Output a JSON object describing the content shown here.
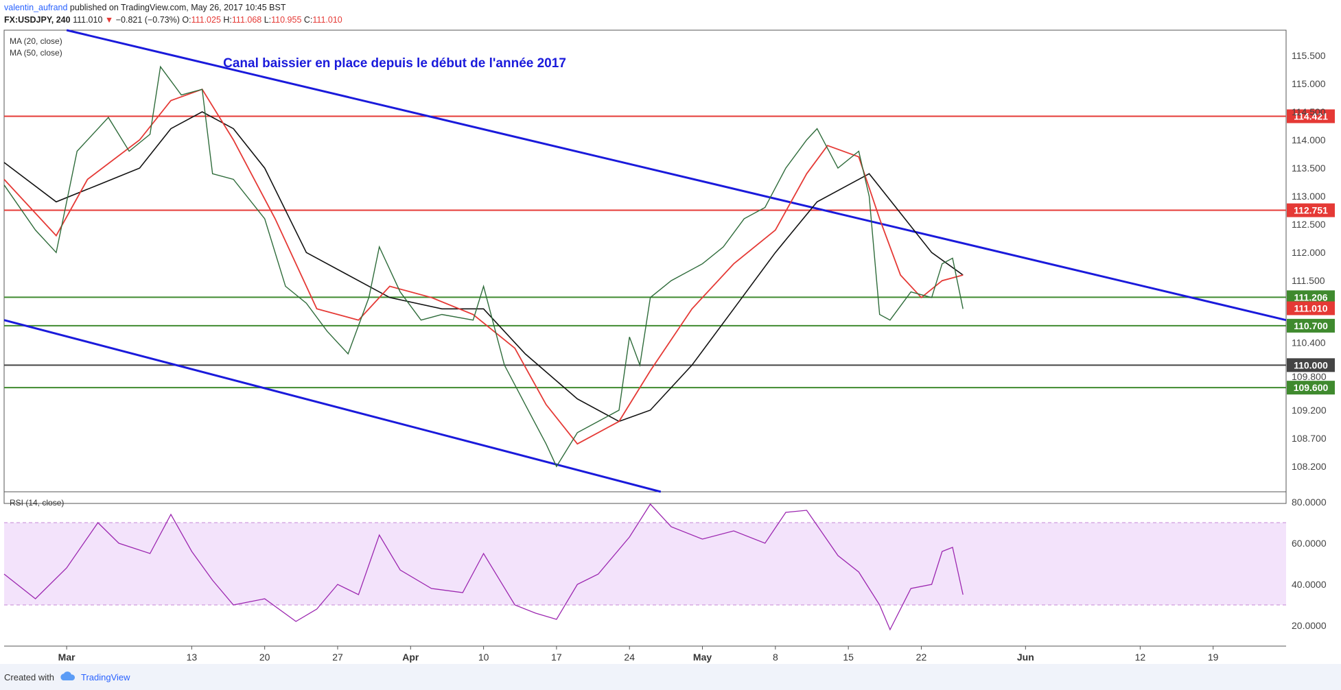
{
  "header": {
    "author": "valentin_aufrand",
    "published_text": "published on TradingView.com, May 26, 2017 10:45 BST",
    "symbol": "FX:USDJPY, 240",
    "last": "111.010",
    "change_arrow": "▼",
    "change": "−0.821 (−0.73%)",
    "o_label": "O:",
    "o": "111.025",
    "h_label": "H:",
    "h": "111.068",
    "l_label": "L:",
    "l": "110.955",
    "c_label": "C:",
    "c": "111.010"
  },
  "legend": {
    "ma20": "MA (20, close)",
    "ma50": "MA (50, close)",
    "rsi": "RSI (14, close)"
  },
  "chart_data": {
    "type": "candlestick",
    "title": "Canal baissier en place depuis le début de l'année 2017",
    "title_color": "#1a1adb",
    "ylim": [
      107.75,
      115.95
    ],
    "x_start": "2017-02-23",
    "x_end": "2017-06-26",
    "price_ticks": [
      "115.500",
      "115.000",
      "114.500",
      "114.000",
      "113.500",
      "113.000",
      "112.500",
      "112.000",
      "111.500",
      "110.400",
      "109.800",
      "109.200",
      "108.700",
      "108.200"
    ],
    "x_ticks": [
      {
        "label": "Mar",
        "date": "2017-03-01",
        "bold": true
      },
      {
        "label": "13",
        "date": "2017-03-13"
      },
      {
        "label": "20",
        "date": "2017-03-20"
      },
      {
        "label": "27",
        "date": "2017-03-27"
      },
      {
        "label": "Apr",
        "date": "2017-04-03",
        "bold": true
      },
      {
        "label": "10",
        "date": "2017-04-10"
      },
      {
        "label": "17",
        "date": "2017-04-17"
      },
      {
        "label": "24",
        "date": "2017-04-24"
      },
      {
        "label": "May",
        "date": "2017-05-01",
        "bold": true
      },
      {
        "label": "8",
        "date": "2017-05-08"
      },
      {
        "label": "15",
        "date": "2017-05-15"
      },
      {
        "label": "22",
        "date": "2017-05-22"
      },
      {
        "label": "Jun",
        "date": "2017-06-01",
        "bold": true
      },
      {
        "label": "12",
        "date": "2017-06-12"
      },
      {
        "label": "19",
        "date": "2017-06-19"
      }
    ],
    "horizontal_levels": [
      {
        "value": 114.421,
        "label": "114.421",
        "color": "#e53935"
      },
      {
        "value": 112.751,
        "label": "112.751",
        "color": "#e53935"
      },
      {
        "value": 111.206,
        "label": "111.206",
        "color": "#3f8a2e"
      },
      {
        "value": 110.7,
        "label": "110.700",
        "color": "#3f8a2e"
      },
      {
        "value": 110.0,
        "label": "110.000",
        "color": "#444444"
      },
      {
        "value": 109.6,
        "label": "109.600",
        "color": "#3f8a2e"
      }
    ],
    "last_price": {
      "value": 111.01,
      "label": "111.010",
      "color": "#e53935"
    },
    "trendlines": [
      {
        "name": "upper channel",
        "color": "#1a1adb",
        "points": [
          [
            "2017-03-01",
            115.95
          ],
          [
            "2017-06-26",
            110.8
          ]
        ]
      },
      {
        "name": "lower channel",
        "color": "#1a1adb",
        "points": [
          [
            "2017-02-23",
            110.8
          ],
          [
            "2017-04-27",
            107.75
          ]
        ]
      }
    ],
    "price_path": [
      [
        "2017-02-23",
        113.2
      ],
      [
        "2017-02-26",
        112.4
      ],
      [
        "2017-02-28",
        112.0
      ],
      [
        "2017-03-02",
        113.8
      ],
      [
        "2017-03-05",
        114.4
      ],
      [
        "2017-03-07",
        113.8
      ],
      [
        "2017-03-09",
        114.1
      ],
      [
        "2017-03-10",
        115.3
      ],
      [
        "2017-03-12",
        114.8
      ],
      [
        "2017-03-14",
        114.9
      ],
      [
        "2017-03-15",
        113.4
      ],
      [
        "2017-03-17",
        113.3
      ],
      [
        "2017-03-20",
        112.6
      ],
      [
        "2017-03-22",
        111.4
      ],
      [
        "2017-03-24",
        111.1
      ],
      [
        "2017-03-26",
        110.6
      ],
      [
        "2017-03-28",
        110.2
      ],
      [
        "2017-03-30",
        111.2
      ],
      [
        "2017-03-31",
        112.1
      ],
      [
        "2017-04-02",
        111.3
      ],
      [
        "2017-04-04",
        110.8
      ],
      [
        "2017-04-06",
        110.9
      ],
      [
        "2017-04-09",
        110.8
      ],
      [
        "2017-04-10",
        111.4
      ],
      [
        "2017-04-12",
        110.0
      ],
      [
        "2017-04-14",
        109.3
      ],
      [
        "2017-04-16",
        108.6
      ],
      [
        "2017-04-17",
        108.2
      ],
      [
        "2017-04-19",
        108.8
      ],
      [
        "2017-04-21",
        109.0
      ],
      [
        "2017-04-23",
        109.2
      ],
      [
        "2017-04-24",
        110.5
      ],
      [
        "2017-04-25",
        110.0
      ],
      [
        "2017-04-26",
        111.2
      ],
      [
        "2017-04-28",
        111.5
      ],
      [
        "2017-05-01",
        111.8
      ],
      [
        "2017-05-03",
        112.1
      ],
      [
        "2017-05-05",
        112.6
      ],
      [
        "2017-05-07",
        112.8
      ],
      [
        "2017-05-09",
        113.5
      ],
      [
        "2017-05-11",
        114.0
      ],
      [
        "2017-05-12",
        114.2
      ],
      [
        "2017-05-14",
        113.5
      ],
      [
        "2017-05-16",
        113.8
      ],
      [
        "2017-05-17",
        113.0
      ],
      [
        "2017-05-18",
        110.9
      ],
      [
        "2017-05-19",
        110.8
      ],
      [
        "2017-05-21",
        111.3
      ],
      [
        "2017-05-23",
        111.2
      ],
      [
        "2017-05-24",
        111.8
      ],
      [
        "2017-05-25",
        111.9
      ],
      [
        "2017-05-26",
        111.0
      ]
    ],
    "ma20_path": [
      [
        "2017-02-23",
        113.3
      ],
      [
        "2017-02-28",
        112.3
      ],
      [
        "2017-03-03",
        113.3
      ],
      [
        "2017-03-08",
        114.0
      ],
      [
        "2017-03-11",
        114.7
      ],
      [
        "2017-03-14",
        114.9
      ],
      [
        "2017-03-17",
        114.0
      ],
      [
        "2017-03-21",
        112.6
      ],
      [
        "2017-03-25",
        111.0
      ],
      [
        "2017-03-29",
        110.8
      ],
      [
        "2017-04-01",
        111.4
      ],
      [
        "2017-04-05",
        111.2
      ],
      [
        "2017-04-09",
        110.9
      ],
      [
        "2017-04-13",
        110.3
      ],
      [
        "2017-04-16",
        109.3
      ],
      [
        "2017-04-19",
        108.6
      ],
      [
        "2017-04-23",
        109.0
      ],
      [
        "2017-04-26",
        109.9
      ],
      [
        "2017-04-30",
        111.0
      ],
      [
        "2017-05-04",
        111.8
      ],
      [
        "2017-05-08",
        112.4
      ],
      [
        "2017-05-11",
        113.4
      ],
      [
        "2017-05-13",
        113.9
      ],
      [
        "2017-05-16",
        113.7
      ],
      [
        "2017-05-18",
        112.6
      ],
      [
        "2017-05-20",
        111.6
      ],
      [
        "2017-05-22",
        111.2
      ],
      [
        "2017-05-24",
        111.5
      ],
      [
        "2017-05-26",
        111.6
      ]
    ],
    "ma50_path": [
      [
        "2017-02-23",
        113.6
      ],
      [
        "2017-02-28",
        112.9
      ],
      [
        "2017-03-04",
        113.2
      ],
      [
        "2017-03-08",
        113.5
      ],
      [
        "2017-03-11",
        114.2
      ],
      [
        "2017-03-14",
        114.5
      ],
      [
        "2017-03-17",
        114.2
      ],
      [
        "2017-03-20",
        113.5
      ],
      [
        "2017-03-24",
        112.0
      ],
      [
        "2017-03-28",
        111.6
      ],
      [
        "2017-04-01",
        111.2
      ],
      [
        "2017-04-06",
        111.0
      ],
      [
        "2017-04-10",
        111.0
      ],
      [
        "2017-04-14",
        110.2
      ],
      [
        "2017-04-19",
        109.4
      ],
      [
        "2017-04-23",
        109.0
      ],
      [
        "2017-04-26",
        109.2
      ],
      [
        "2017-04-30",
        110.0
      ],
      [
        "2017-05-04",
        111.0
      ],
      [
        "2017-05-08",
        112.0
      ],
      [
        "2017-05-12",
        112.9
      ],
      [
        "2017-05-15",
        113.2
      ],
      [
        "2017-05-17",
        113.4
      ],
      [
        "2017-05-20",
        112.7
      ],
      [
        "2017-05-23",
        112.0
      ],
      [
        "2017-05-26",
        111.6
      ]
    ],
    "rsi": {
      "ylim": [
        10,
        85
      ],
      "ticks": [
        "80.0000",
        "60.0000",
        "40.0000",
        "20.0000"
      ],
      "band": [
        30,
        70
      ],
      "band_color": "#f3e3fb",
      "line_color": "#9c27b0",
      "path": [
        [
          "2017-02-23",
          45
        ],
        [
          "2017-02-26",
          33
        ],
        [
          "2017-03-01",
          48
        ],
        [
          "2017-03-04",
          70
        ],
        [
          "2017-03-06",
          60
        ],
        [
          "2017-03-09",
          55
        ],
        [
          "2017-03-11",
          74
        ],
        [
          "2017-03-13",
          56
        ],
        [
          "2017-03-15",
          42
        ],
        [
          "2017-03-17",
          30
        ],
        [
          "2017-03-20",
          33
        ],
        [
          "2017-03-23",
          22
        ],
        [
          "2017-03-25",
          28
        ],
        [
          "2017-03-27",
          40
        ],
        [
          "2017-03-29",
          35
        ],
        [
          "2017-03-31",
          64
        ],
        [
          "2017-04-02",
          47
        ],
        [
          "2017-04-05",
          38
        ],
        [
          "2017-04-08",
          36
        ],
        [
          "2017-04-10",
          55
        ],
        [
          "2017-04-13",
          30
        ],
        [
          "2017-04-15",
          26
        ],
        [
          "2017-04-17",
          23
        ],
        [
          "2017-04-19",
          40
        ],
        [
          "2017-04-21",
          45
        ],
        [
          "2017-04-24",
          63
        ],
        [
          "2017-04-26",
          79
        ],
        [
          "2017-04-28",
          68
        ],
        [
          "2017-05-01",
          62
        ],
        [
          "2017-05-04",
          66
        ],
        [
          "2017-05-07",
          60
        ],
        [
          "2017-05-09",
          75
        ],
        [
          "2017-05-11",
          76
        ],
        [
          "2017-05-14",
          54
        ],
        [
          "2017-05-16",
          46
        ],
        [
          "2017-05-18",
          30
        ],
        [
          "2017-05-19",
          18
        ],
        [
          "2017-05-21",
          38
        ],
        [
          "2017-05-23",
          40
        ],
        [
          "2017-05-24",
          56
        ],
        [
          "2017-05-25",
          58
        ],
        [
          "2017-05-26",
          35
        ]
      ]
    }
  },
  "footer": {
    "created_with": "Created with",
    "brand": "TradingView"
  }
}
